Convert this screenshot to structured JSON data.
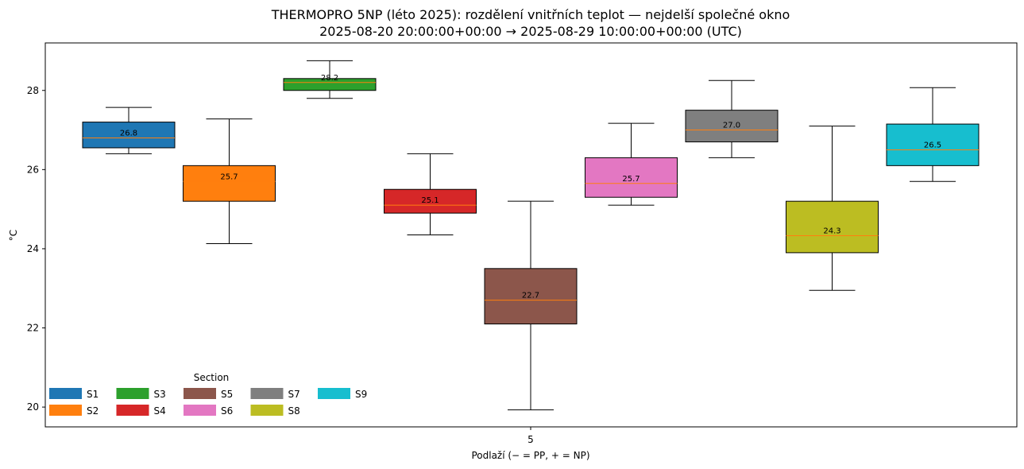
{
  "chart_data": {
    "type": "box",
    "title_line1": "THERMOPRO 5NP (léto 2025): rozdělení vnitřních teplot — nejdelší společné okno",
    "title_line2": "2025-08-20 20:00:00+00:00 → 2025-08-29 10:00:00+00:00 (UTC)",
    "xlabel": "Podlaží (− = PP, + = NP)",
    "ylabel": "°C",
    "x_category": "5",
    "ylim": [
      19.5,
      29.2
    ],
    "yticks": [
      20,
      22,
      24,
      26,
      28
    ],
    "legend": {
      "title": "Section",
      "placement": "lower-left",
      "columns": 5
    },
    "series": [
      {
        "name": "S1",
        "color": "#1f77b4",
        "whisker_low": 26.4,
        "q1": 26.55,
        "median": 26.8,
        "q3": 27.2,
        "whisker_high": 27.57,
        "median_label": "26.8"
      },
      {
        "name": "S2",
        "color": "#ff7f0e",
        "whisker_low": 24.13,
        "q1": 25.2,
        "median": 25.7,
        "q3": 26.1,
        "whisker_high": 27.28,
        "median_label": "25.7"
      },
      {
        "name": "S3",
        "color": "#2ca02c",
        "whisker_low": 27.8,
        "q1": 28.0,
        "median": 28.2,
        "q3": 28.3,
        "whisker_high": 28.75,
        "median_label": "28.2"
      },
      {
        "name": "S4",
        "color": "#d62728",
        "whisker_low": 24.35,
        "q1": 24.9,
        "median": 25.1,
        "q3": 25.5,
        "whisker_high": 26.4,
        "median_label": "25.1"
      },
      {
        "name": "S5",
        "color": "#8c564b",
        "whisker_low": 19.93,
        "q1": 22.1,
        "median": 22.7,
        "q3": 23.5,
        "whisker_high": 25.2,
        "median_label": "22.7"
      },
      {
        "name": "S6",
        "color": "#e377c2",
        "whisker_low": 25.1,
        "q1": 25.3,
        "median": 25.65,
        "q3": 26.3,
        "whisker_high": 27.17,
        "median_label": "25.7"
      },
      {
        "name": "S7",
        "color": "#7f7f7f",
        "whisker_low": 26.3,
        "q1": 26.7,
        "median": 27.0,
        "q3": 27.5,
        "whisker_high": 28.25,
        "median_label": "27.0"
      },
      {
        "name": "S8",
        "color": "#bcbd22",
        "whisker_low": 22.95,
        "q1": 23.9,
        "median": 24.33,
        "q3": 25.2,
        "whisker_high": 27.1,
        "median_label": "24.3"
      },
      {
        "name": "S9",
        "color": "#17becf",
        "whisker_low": 25.7,
        "q1": 26.1,
        "median": 26.5,
        "q3": 27.15,
        "whisker_high": 28.07,
        "median_label": "26.5"
      }
    ],
    "median_line_color": "#ff7f0e",
    "grid": false
  }
}
